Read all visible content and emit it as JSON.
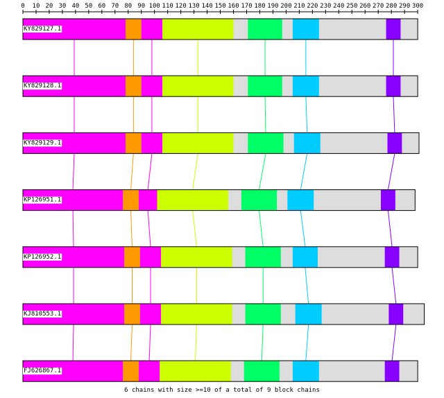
{
  "axis": {
    "ticks": [
      0,
      10,
      20,
      30,
      40,
      50,
      60,
      70,
      80,
      90,
      100,
      110,
      120,
      130,
      140,
      150,
      160,
      170,
      180,
      190,
      200,
      210,
      220,
      230,
      240,
      250,
      260,
      270,
      280,
      290,
      300
    ]
  },
  "footer_text": "6 chains with size >=10 of a total of 9 block chains",
  "block_colors": [
    "#ff00ff",
    "#ff9900",
    "#ff00ff",
    "#ccff00",
    "#00ff66",
    "#00ccff",
    "#8800ff"
  ],
  "block_color_names": [
    "magenta",
    "orange",
    "magenta",
    "yellow-green",
    "green",
    "cyan",
    "violet"
  ],
  "sequences": [
    {
      "id": "KY829127.1",
      "length": 300,
      "blocks": [
        [
          0,
          78
        ],
        [
          78,
          90
        ],
        [
          90,
          106
        ],
        [
          106,
          160
        ],
        [
          171,
          197
        ],
        [
          205,
          225
        ],
        [
          276,
          287
        ]
      ]
    },
    {
      "id": "KY829128.1",
      "length": 300,
      "blocks": [
        [
          0,
          78
        ],
        [
          78,
          90
        ],
        [
          90,
          106
        ],
        [
          106,
          160
        ],
        [
          171,
          197
        ],
        [
          205,
          225
        ],
        [
          276,
          287
        ]
      ]
    },
    {
      "id": "KY829129.1",
      "length": 301,
      "blocks": [
        [
          0,
          78
        ],
        [
          78,
          90
        ],
        [
          90,
          106
        ],
        [
          106,
          160
        ],
        [
          171,
          198
        ],
        [
          206,
          226
        ],
        [
          277,
          288
        ]
      ]
    },
    {
      "id": "KP126951.1",
      "length": 298,
      "blocks": [
        [
          0,
          76
        ],
        [
          76,
          88
        ],
        [
          88,
          102
        ],
        [
          102,
          156
        ],
        [
          166,
          193
        ],
        [
          201,
          221
        ],
        [
          272,
          283
        ]
      ]
    },
    {
      "id": "KP126952.1",
      "length": 300,
      "blocks": [
        [
          0,
          77
        ],
        [
          77,
          89
        ],
        [
          89,
          105
        ],
        [
          105,
          159
        ],
        [
          169,
          196
        ],
        [
          205,
          224
        ],
        [
          275,
          286
        ]
      ]
    },
    {
      "id": "KJ810553.1",
      "length": 305,
      "blocks": [
        [
          0,
          77
        ],
        [
          77,
          89
        ],
        [
          89,
          105
        ],
        [
          105,
          159
        ],
        [
          169,
          196
        ],
        [
          207,
          227
        ],
        [
          278,
          289
        ]
      ]
    },
    {
      "id": "FJ626867.1",
      "length": 300,
      "blocks": [
        [
          0,
          76
        ],
        [
          76,
          88
        ],
        [
          88,
          104
        ],
        [
          104,
          158
        ],
        [
          168,
          195
        ],
        [
          205,
          225
        ],
        [
          275,
          286
        ]
      ]
    }
  ]
}
